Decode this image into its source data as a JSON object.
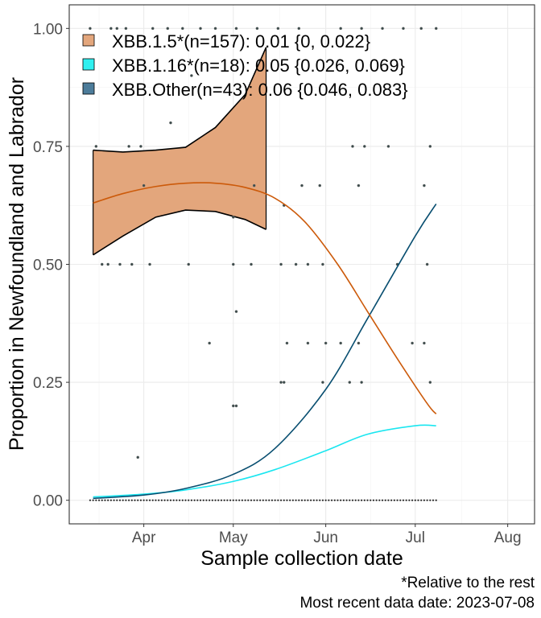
{
  "chart_data": {
    "type": "line",
    "xlabel": "Sample collection date",
    "ylabel": "Proportion in Newfoundland and Labrador",
    "x_range": [
      "2023-03-07",
      "2023-08-10"
    ],
    "ylim": [
      -0.05,
      1.05
    ],
    "x_ticks": [
      {
        "date": "2023-04-01",
        "label": "Apr"
      },
      {
        "date": "2023-05-01",
        "label": "May"
      },
      {
        "date": "2023-06-01",
        "label": "Jun"
      },
      {
        "date": "2023-07-01",
        "label": "Jul"
      },
      {
        "date": "2023-08-01",
        "label": "Aug"
      }
    ],
    "y_ticks": [
      {
        "value": 0,
        "label": "0.00"
      },
      {
        "value": 0.25,
        "label": "0.25"
      },
      {
        "value": 0.5,
        "label": "0.50"
      },
      {
        "value": 0.75,
        "label": "0.75"
      },
      {
        "value": 1,
        "label": "1.00"
      }
    ],
    "grid": true,
    "legend_position": "top-left",
    "series": [
      {
        "name": "XBB.1.5*",
        "legend": "XBB.1.5*(n=157): 0.01 {0, 0.022}",
        "color": "#cc5a0a",
        "fill": "#e3a67c",
        "x": [
          "2023-03-15",
          "2023-03-25",
          "2023-04-05",
          "2023-04-15",
          "2023-04-25",
          "2023-05-05",
          "2023-05-15",
          "2023-05-25",
          "2023-06-05",
          "2023-06-15",
          "2023-06-25",
          "2023-07-05",
          "2023-07-08"
        ],
        "values": [
          0.63,
          0.65,
          0.665,
          0.672,
          0.672,
          0.663,
          0.64,
          0.59,
          0.5,
          0.4,
          0.3,
          0.205,
          0.183
        ],
        "ci_x": [
          "2023-03-15",
          "2023-03-25",
          "2023-04-05",
          "2023-04-15",
          "2023-04-25",
          "2023-05-05",
          "2023-05-12"
        ],
        "ci_upper": [
          0.742,
          0.738,
          0.742,
          0.748,
          0.79,
          0.86,
          0.96
        ],
        "ci_lower": [
          0.52,
          0.56,
          0.6,
          0.615,
          0.612,
          0.595,
          0.574
        ]
      },
      {
        "name": "XBB.1.16*",
        "legend": "XBB.1.16*(n=18): 0.05 {0.026, 0.069}",
        "color": "#1ae6f0",
        "fill": "#2ff0f0",
        "x": [
          "2023-03-15",
          "2023-04-01",
          "2023-04-15",
          "2023-05-01",
          "2023-05-15",
          "2023-06-01",
          "2023-06-15",
          "2023-07-01",
          "2023-07-08"
        ],
        "values": [
          0.007,
          0.013,
          0.022,
          0.04,
          0.065,
          0.105,
          0.14,
          0.158,
          0.158
        ]
      },
      {
        "name": "XBB.Other",
        "legend": "XBB.Other(n=43): 0.06 {0.046, 0.083}",
        "color": "#084e70",
        "fill": "#4c7c9a",
        "x": [
          "2023-03-15",
          "2023-04-01",
          "2023-04-15",
          "2023-05-01",
          "2023-05-15",
          "2023-06-01",
          "2023-06-15",
          "2023-07-01",
          "2023-07-08"
        ],
        "values": [
          0.004,
          0.011,
          0.025,
          0.055,
          0.11,
          0.235,
          0.385,
          0.56,
          0.628
        ]
      }
    ],
    "observations": [
      {
        "x": "2023-03-14",
        "y": 1
      },
      {
        "x": "2023-03-21",
        "y": 1
      },
      {
        "x": "2023-03-23",
        "y": 1
      },
      {
        "x": "2023-03-26",
        "y": 1
      },
      {
        "x": "2023-04-04",
        "y": 1
      },
      {
        "x": "2023-04-09",
        "y": 1
      },
      {
        "x": "2023-04-14",
        "y": 1
      },
      {
        "x": "2023-04-20",
        "y": 1
      },
      {
        "x": "2023-04-25",
        "y": 1
      },
      {
        "x": "2023-05-02",
        "y": 1
      },
      {
        "x": "2023-05-09",
        "y": 1
      },
      {
        "x": "2023-05-16",
        "y": 1
      },
      {
        "x": "2023-05-23",
        "y": 1
      },
      {
        "x": "2023-06-06",
        "y": 1
      },
      {
        "x": "2023-06-13",
        "y": 1
      },
      {
        "x": "2023-06-20",
        "y": 1
      },
      {
        "x": "2023-06-27",
        "y": 1
      },
      {
        "x": "2023-07-03",
        "y": 1
      },
      {
        "x": "2023-07-08",
        "y": 1
      },
      {
        "x": "2023-03-16",
        "y": 0.75
      },
      {
        "x": "2023-03-27",
        "y": 0.75
      },
      {
        "x": "2023-04-17",
        "y": 0.9
      },
      {
        "x": "2023-04-10",
        "y": 0.8
      },
      {
        "x": "2023-03-31",
        "y": 0.75
      },
      {
        "x": "2023-06-10",
        "y": 0.75
      },
      {
        "x": "2023-06-14",
        "y": 0.75
      },
      {
        "x": "2023-06-22",
        "y": 0.75
      },
      {
        "x": "2023-07-06",
        "y": 0.75
      },
      {
        "x": "2023-04-01",
        "y": 0.667
      },
      {
        "x": "2023-05-08",
        "y": 0.667
      },
      {
        "x": "2023-05-24",
        "y": 0.667
      },
      {
        "x": "2023-05-30",
        "y": 0.667
      },
      {
        "x": "2023-06-12",
        "y": 0.667
      },
      {
        "x": "2023-07-04",
        "y": 0.667
      },
      {
        "x": "2023-05-18",
        "y": 0.625
      },
      {
        "x": "2023-05-01",
        "y": 0.6
      },
      {
        "x": "2023-03-18",
        "y": 0.5
      },
      {
        "x": "2023-03-20",
        "y": 0.5
      },
      {
        "x": "2023-03-24",
        "y": 0.5
      },
      {
        "x": "2023-03-28",
        "y": 0.5
      },
      {
        "x": "2023-04-03",
        "y": 0.5
      },
      {
        "x": "2023-04-16",
        "y": 0.5
      },
      {
        "x": "2023-05-01",
        "y": 0.5
      },
      {
        "x": "2023-05-07",
        "y": 0.5
      },
      {
        "x": "2023-05-17",
        "y": 0.5
      },
      {
        "x": "2023-05-22",
        "y": 0.5
      },
      {
        "x": "2023-05-26",
        "y": 0.5
      },
      {
        "x": "2023-05-31",
        "y": 0.5
      },
      {
        "x": "2023-06-25",
        "y": 0.5
      },
      {
        "x": "2023-07-05",
        "y": 0.5
      },
      {
        "x": "2023-05-02",
        "y": 0.4
      },
      {
        "x": "2023-04-23",
        "y": 0.333
      },
      {
        "x": "2023-05-19",
        "y": 0.333
      },
      {
        "x": "2023-05-26",
        "y": 0.333
      },
      {
        "x": "2023-06-01",
        "y": 0.333
      },
      {
        "x": "2023-06-06",
        "y": 0.333
      },
      {
        "x": "2023-06-12",
        "y": 0.333
      },
      {
        "x": "2023-06-30",
        "y": 0.333
      },
      {
        "x": "2023-07-04",
        "y": 0.333
      },
      {
        "x": "2023-05-17",
        "y": 0.25
      },
      {
        "x": "2023-05-18",
        "y": 0.25
      },
      {
        "x": "2023-05-31",
        "y": 0.25
      },
      {
        "x": "2023-06-09",
        "y": 0.25
      },
      {
        "x": "2023-06-13",
        "y": 0.25
      },
      {
        "x": "2023-07-06",
        "y": 0.25
      },
      {
        "x": "2023-05-01",
        "y": 0.2
      },
      {
        "x": "2023-05-02",
        "y": 0.2
      },
      {
        "x": "2023-03-30",
        "y": 0.091
      }
    ],
    "annotations": [
      "*Relative to the rest",
      "Most recent data date: 2023-07-08"
    ]
  }
}
